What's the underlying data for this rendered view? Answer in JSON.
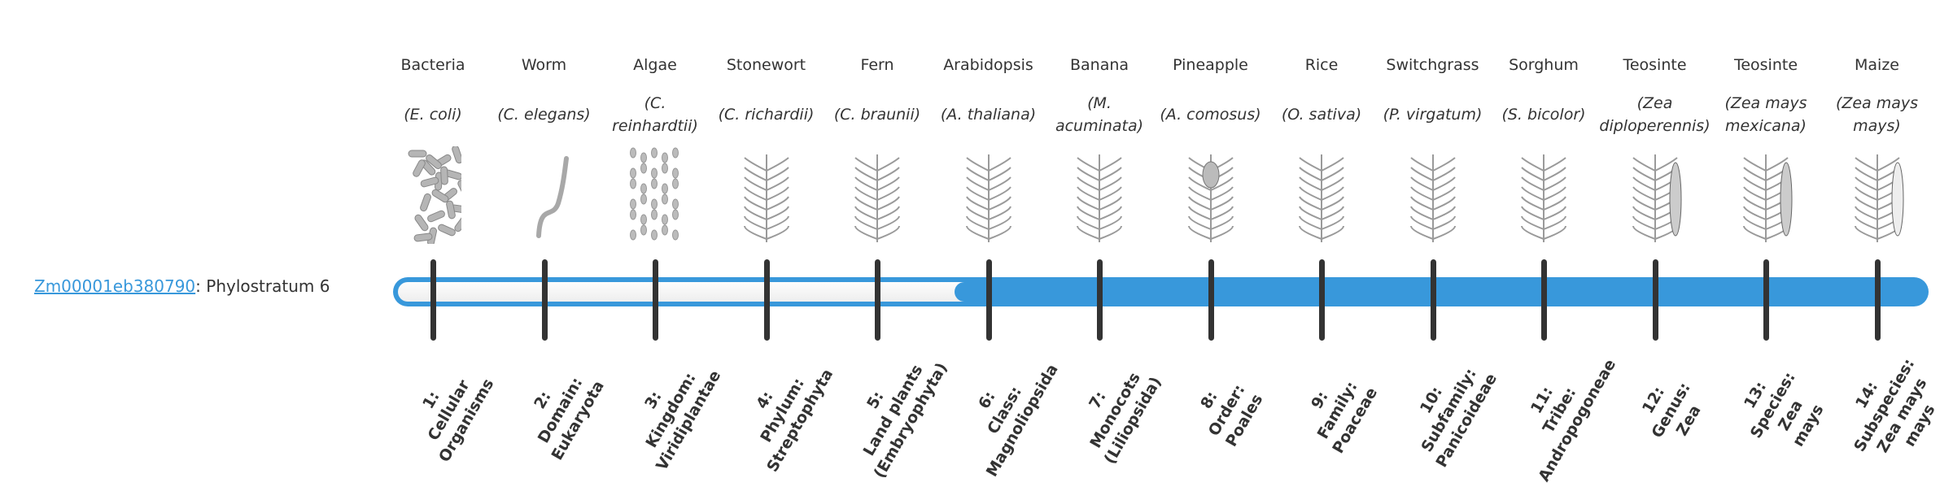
{
  "gene": {
    "id": "Zm00001eb380790",
    "suffix": ": Phylostratum 6",
    "phylostratum": 6
  },
  "colors": {
    "accent": "#3898db",
    "tick": "#333333",
    "empty": "#f3f3f3"
  },
  "organisms": [
    {
      "name": "Bacteria",
      "sci": "(E. coli)",
      "icon": "bacteria-icon"
    },
    {
      "name": "Worm",
      "sci": "(C. elegans)",
      "icon": "worm-icon"
    },
    {
      "name": "Algae",
      "sci": "(C. reinhardtii)",
      "icon": "algae-icon"
    },
    {
      "name": "Stonewort",
      "sci": "(C. richardii)",
      "icon": "stonewort-icon"
    },
    {
      "name": "Fern",
      "sci": "(C. braunii)",
      "icon": "fern-icon"
    },
    {
      "name": "Arabidopsis",
      "sci": "(A. thaliana)",
      "icon": "arabidopsis-icon"
    },
    {
      "name": "Banana",
      "sci": "(M. acuminata)",
      "icon": "banana-icon"
    },
    {
      "name": "Pineapple",
      "sci": "(A. comosus)",
      "icon": "pineapple-icon"
    },
    {
      "name": "Rice",
      "sci": "(O. sativa)",
      "icon": "rice-icon"
    },
    {
      "name": "Switchgrass",
      "sci": "(P. virgatum)",
      "icon": "switchgrass-icon"
    },
    {
      "name": "Sorghum",
      "sci": "(S. bicolor)",
      "icon": "sorghum-icon"
    },
    {
      "name": "Teosinte",
      "sci": "(Zea diploperennis)",
      "icon": "teosinte-icon"
    },
    {
      "name": "Teosinte",
      "sci": "(Zea mays mexicana)",
      "icon": "teosinte-icon"
    },
    {
      "name": "Maize",
      "sci": "(Zea mays mays)",
      "icon": "maize-icon"
    }
  ],
  "strata": [
    [
      "1:",
      "Cellular",
      "Organisms"
    ],
    [
      "2:",
      "Domain:",
      "Eukaryota"
    ],
    [
      "3:",
      "Kingdom:",
      "Viridiplantae"
    ],
    [
      "4:",
      "Phylum:",
      "Streptophyta"
    ],
    [
      "5:",
      "Land plants",
      "(Embryophyta)"
    ],
    [
      "6:",
      "Class:",
      "Magnoliopsida"
    ],
    [
      "7:",
      "Monocots",
      "(Liliopsida)"
    ],
    [
      "8:",
      "Order:",
      "Poales"
    ],
    [
      "9:",
      "Family:",
      "Poaceae"
    ],
    [
      "10:",
      "Subfamily:",
      "Panicoideae"
    ],
    [
      "11:",
      "Tribe:",
      "Andropogoneae"
    ],
    [
      "12:",
      "Genus:",
      "Zea"
    ],
    [
      "13:",
      "Species:",
      "Zea",
      "mays"
    ],
    [
      "14:",
      "Subspecies:",
      "Zea mays",
      "mays"
    ]
  ]
}
